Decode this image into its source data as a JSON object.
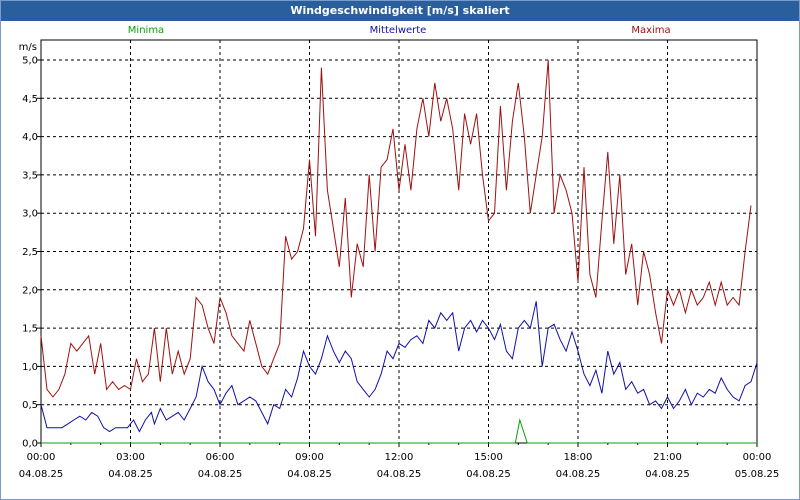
{
  "window": {
    "title": "Windgeschwindigkeit [m/s] skaliert"
  },
  "colors": {
    "titlebar": "#2a5f9e",
    "minima": "#0aa00a",
    "mittel": "#1010a8",
    "maxima": "#a01010",
    "grid": "#000000"
  },
  "chart_data": {
    "type": "line",
    "title": "Windgeschwindigkeit [m/s] skaliert",
    "ylabel": "m/s",
    "xlabel": "",
    "ylim": [
      0,
      5.0
    ],
    "y_ticks": [
      "0,0",
      "0,5",
      "1,0",
      "1,5",
      "2,0",
      "2,5",
      "3,0",
      "3,5",
      "4,0",
      "4,5",
      "5,0"
    ],
    "x_ticks": [
      {
        "time": "00:00",
        "date": "04.08.25"
      },
      {
        "time": "03:00",
        "date": "04.08.25"
      },
      {
        "time": "06:00",
        "date": "04.08.25"
      },
      {
        "time": "09:00",
        "date": "04.08.25"
      },
      {
        "time": "12:00",
        "date": "04.08.25"
      },
      {
        "time": "15:00",
        "date": "04.08.25"
      },
      {
        "time": "18:00",
        "date": "04.08.25"
      },
      {
        "time": "21:00",
        "date": "04.08.25"
      },
      {
        "time": "00:00",
        "date": "05.08.25"
      }
    ],
    "grid": true,
    "series": [
      {
        "name": "Minima",
        "color": "#0aa00a",
        "points": [
          [
            0,
            0.0
          ],
          [
            15.6,
            0.0
          ],
          [
            15.9,
            0.0
          ],
          [
            16.05,
            0.3
          ],
          [
            16.3,
            0.0
          ],
          [
            24,
            0.0
          ]
        ]
      },
      {
        "name": "Mittelwerte",
        "color": "#1010a8",
        "points": [
          [
            0.0,
            0.5
          ],
          [
            0.2,
            0.2
          ],
          [
            0.5,
            0.2
          ],
          [
            0.7,
            0.2
          ],
          [
            0.9,
            0.25
          ],
          [
            1.1,
            0.3
          ],
          [
            1.3,
            0.35
          ],
          [
            1.5,
            0.3
          ],
          [
            1.7,
            0.4
          ],
          [
            1.9,
            0.35
          ],
          [
            2.1,
            0.2
          ],
          [
            2.3,
            0.15
          ],
          [
            2.5,
            0.2
          ],
          [
            2.7,
            0.2
          ],
          [
            2.9,
            0.2
          ],
          [
            3.1,
            0.3
          ],
          [
            3.3,
            0.15
          ],
          [
            3.5,
            0.3
          ],
          [
            3.7,
            0.4
          ],
          [
            3.8,
            0.25
          ],
          [
            4.0,
            0.45
          ],
          [
            4.2,
            0.3
          ],
          [
            4.4,
            0.35
          ],
          [
            4.6,
            0.4
          ],
          [
            4.8,
            0.3
          ],
          [
            5.0,
            0.45
          ],
          [
            5.2,
            0.6
          ],
          [
            5.4,
            1.0
          ],
          [
            5.6,
            0.8
          ],
          [
            5.8,
            0.7
          ],
          [
            6.0,
            0.5
          ],
          [
            6.2,
            0.65
          ],
          [
            6.4,
            0.75
          ],
          [
            6.6,
            0.5
          ],
          [
            6.8,
            0.55
          ],
          [
            7.0,
            0.6
          ],
          [
            7.2,
            0.55
          ],
          [
            7.4,
            0.4
          ],
          [
            7.6,
            0.25
          ],
          [
            7.8,
            0.5
          ],
          [
            8.0,
            0.45
          ],
          [
            8.2,
            0.7
          ],
          [
            8.4,
            0.6
          ],
          [
            8.6,
            0.85
          ],
          [
            8.8,
            1.2
          ],
          [
            9.0,
            1.0
          ],
          [
            9.2,
            0.9
          ],
          [
            9.4,
            1.1
          ],
          [
            9.6,
            1.4
          ],
          [
            9.8,
            1.2
          ],
          [
            10.0,
            1.05
          ],
          [
            10.2,
            1.2
          ],
          [
            10.4,
            1.1
          ],
          [
            10.6,
            0.8
          ],
          [
            10.8,
            0.7
          ],
          [
            11.0,
            0.6
          ],
          [
            11.2,
            0.7
          ],
          [
            11.4,
            0.9
          ],
          [
            11.6,
            1.2
          ],
          [
            11.8,
            1.1
          ],
          [
            12.0,
            1.3
          ],
          [
            12.2,
            1.25
          ],
          [
            12.4,
            1.35
          ],
          [
            12.6,
            1.4
          ],
          [
            12.8,
            1.3
          ],
          [
            13.0,
            1.6
          ],
          [
            13.2,
            1.5
          ],
          [
            13.4,
            1.7
          ],
          [
            13.6,
            1.6
          ],
          [
            13.8,
            1.7
          ],
          [
            14.0,
            1.2
          ],
          [
            14.2,
            1.5
          ],
          [
            14.4,
            1.6
          ],
          [
            14.6,
            1.45
          ],
          [
            14.8,
            1.6
          ],
          [
            15.0,
            1.5
          ],
          [
            15.2,
            1.35
          ],
          [
            15.4,
            1.55
          ],
          [
            15.6,
            1.2
          ],
          [
            15.8,
            1.1
          ],
          [
            16.0,
            1.5
          ],
          [
            16.2,
            1.6
          ],
          [
            16.4,
            1.5
          ],
          [
            16.6,
            1.85
          ],
          [
            16.8,
            1.0
          ],
          [
            17.0,
            1.5
          ],
          [
            17.2,
            1.55
          ],
          [
            17.4,
            1.35
          ],
          [
            17.6,
            1.2
          ],
          [
            17.8,
            1.45
          ],
          [
            18.0,
            1.2
          ],
          [
            18.2,
            0.9
          ],
          [
            18.4,
            0.75
          ],
          [
            18.6,
            0.95
          ],
          [
            18.8,
            0.65
          ],
          [
            19.0,
            1.2
          ],
          [
            19.2,
            0.9
          ],
          [
            19.4,
            1.05
          ],
          [
            19.6,
            0.7
          ],
          [
            19.8,
            0.8
          ],
          [
            20.0,
            0.65
          ],
          [
            20.2,
            0.7
          ],
          [
            20.4,
            0.5
          ],
          [
            20.6,
            0.55
          ],
          [
            20.8,
            0.45
          ],
          [
            21.0,
            0.6
          ],
          [
            21.2,
            0.45
          ],
          [
            21.4,
            0.55
          ],
          [
            21.6,
            0.7
          ],
          [
            21.8,
            0.5
          ],
          [
            22.0,
            0.65
          ],
          [
            22.2,
            0.6
          ],
          [
            22.4,
            0.7
          ],
          [
            22.6,
            0.65
          ],
          [
            22.8,
            0.85
          ],
          [
            23.0,
            0.7
          ],
          [
            23.2,
            0.6
          ],
          [
            23.4,
            0.55
          ],
          [
            23.6,
            0.75
          ],
          [
            23.8,
            0.8
          ],
          [
            24.0,
            1.05
          ]
        ]
      },
      {
        "name": "Maxima",
        "color": "#a01010",
        "points": [
          [
            0.0,
            1.4
          ],
          [
            0.2,
            0.7
          ],
          [
            0.4,
            0.6
          ],
          [
            0.6,
            0.7
          ],
          [
            0.8,
            0.9
          ],
          [
            1.0,
            1.3
          ],
          [
            1.2,
            1.2
          ],
          [
            1.4,
            1.3
          ],
          [
            1.6,
            1.4
          ],
          [
            1.8,
            0.9
          ],
          [
            2.0,
            1.3
          ],
          [
            2.2,
            0.7
          ],
          [
            2.4,
            0.8
          ],
          [
            2.6,
            0.7
          ],
          [
            2.8,
            0.75
          ],
          [
            3.0,
            0.7
          ],
          [
            3.2,
            1.1
          ],
          [
            3.4,
            0.8
          ],
          [
            3.6,
            0.9
          ],
          [
            3.8,
            1.5
          ],
          [
            4.0,
            0.8
          ],
          [
            4.2,
            1.5
          ],
          [
            4.4,
            0.9
          ],
          [
            4.6,
            1.2
          ],
          [
            4.8,
            0.9
          ],
          [
            5.0,
            1.1
          ],
          [
            5.2,
            1.9
          ],
          [
            5.4,
            1.8
          ],
          [
            5.6,
            1.5
          ],
          [
            5.8,
            1.3
          ],
          [
            6.0,
            1.9
          ],
          [
            6.2,
            1.7
          ],
          [
            6.4,
            1.4
          ],
          [
            6.6,
            1.3
          ],
          [
            6.8,
            1.2
          ],
          [
            7.0,
            1.6
          ],
          [
            7.2,
            1.3
          ],
          [
            7.4,
            1.0
          ],
          [
            7.6,
            0.9
          ],
          [
            7.8,
            1.1
          ],
          [
            8.0,
            1.3
          ],
          [
            8.2,
            2.7
          ],
          [
            8.4,
            2.4
          ],
          [
            8.6,
            2.5
          ],
          [
            8.8,
            2.8
          ],
          [
            9.0,
            3.7
          ],
          [
            9.2,
            2.7
          ],
          [
            9.4,
            4.9
          ],
          [
            9.6,
            3.3
          ],
          [
            9.8,
            2.8
          ],
          [
            10.0,
            2.3
          ],
          [
            10.2,
            3.2
          ],
          [
            10.4,
            1.9
          ],
          [
            10.6,
            2.6
          ],
          [
            10.8,
            2.3
          ],
          [
            11.0,
            3.5
          ],
          [
            11.2,
            2.5
          ],
          [
            11.4,
            3.6
          ],
          [
            11.6,
            3.7
          ],
          [
            11.8,
            4.1
          ],
          [
            12.0,
            3.3
          ],
          [
            12.2,
            3.9
          ],
          [
            12.4,
            3.3
          ],
          [
            12.6,
            4.1
          ],
          [
            12.8,
            4.5
          ],
          [
            13.0,
            4.0
          ],
          [
            13.2,
            4.7
          ],
          [
            13.4,
            4.2
          ],
          [
            13.6,
            4.5
          ],
          [
            13.8,
            4.1
          ],
          [
            14.0,
            3.3
          ],
          [
            14.2,
            4.3
          ],
          [
            14.4,
            3.9
          ],
          [
            14.6,
            4.3
          ],
          [
            14.8,
            3.5
          ],
          [
            15.0,
            2.9
          ],
          [
            15.2,
            3.0
          ],
          [
            15.4,
            4.4
          ],
          [
            15.6,
            3.3
          ],
          [
            15.8,
            4.2
          ],
          [
            16.0,
            4.7
          ],
          [
            16.2,
            4.0
          ],
          [
            16.4,
            3.0
          ],
          [
            16.6,
            3.5
          ],
          [
            16.8,
            4.0
          ],
          [
            17.0,
            5.0
          ],
          [
            17.2,
            3.0
          ],
          [
            17.4,
            3.5
          ],
          [
            17.6,
            3.3
          ],
          [
            17.8,
            3.0
          ],
          [
            18.0,
            2.1
          ],
          [
            18.2,
            3.6
          ],
          [
            18.4,
            2.2
          ],
          [
            18.6,
            1.9
          ],
          [
            18.8,
            2.9
          ],
          [
            19.0,
            3.8
          ],
          [
            19.2,
            2.6
          ],
          [
            19.4,
            3.5
          ],
          [
            19.6,
            2.2
          ],
          [
            19.8,
            2.6
          ],
          [
            20.0,
            1.8
          ],
          [
            20.2,
            2.5
          ],
          [
            20.4,
            2.2
          ],
          [
            20.6,
            1.7
          ],
          [
            20.8,
            1.3
          ],
          [
            21.0,
            2.0
          ],
          [
            21.2,
            1.8
          ],
          [
            21.4,
            2.0
          ],
          [
            21.6,
            1.7
          ],
          [
            21.8,
            2.0
          ],
          [
            22.0,
            1.8
          ],
          [
            22.2,
            1.9
          ],
          [
            22.4,
            2.1
          ],
          [
            22.6,
            1.8
          ],
          [
            22.8,
            2.1
          ],
          [
            23.0,
            1.8
          ],
          [
            23.2,
            1.9
          ],
          [
            23.4,
            1.8
          ],
          [
            23.6,
            2.5
          ],
          [
            23.8,
            3.1
          ]
        ]
      }
    ]
  }
}
